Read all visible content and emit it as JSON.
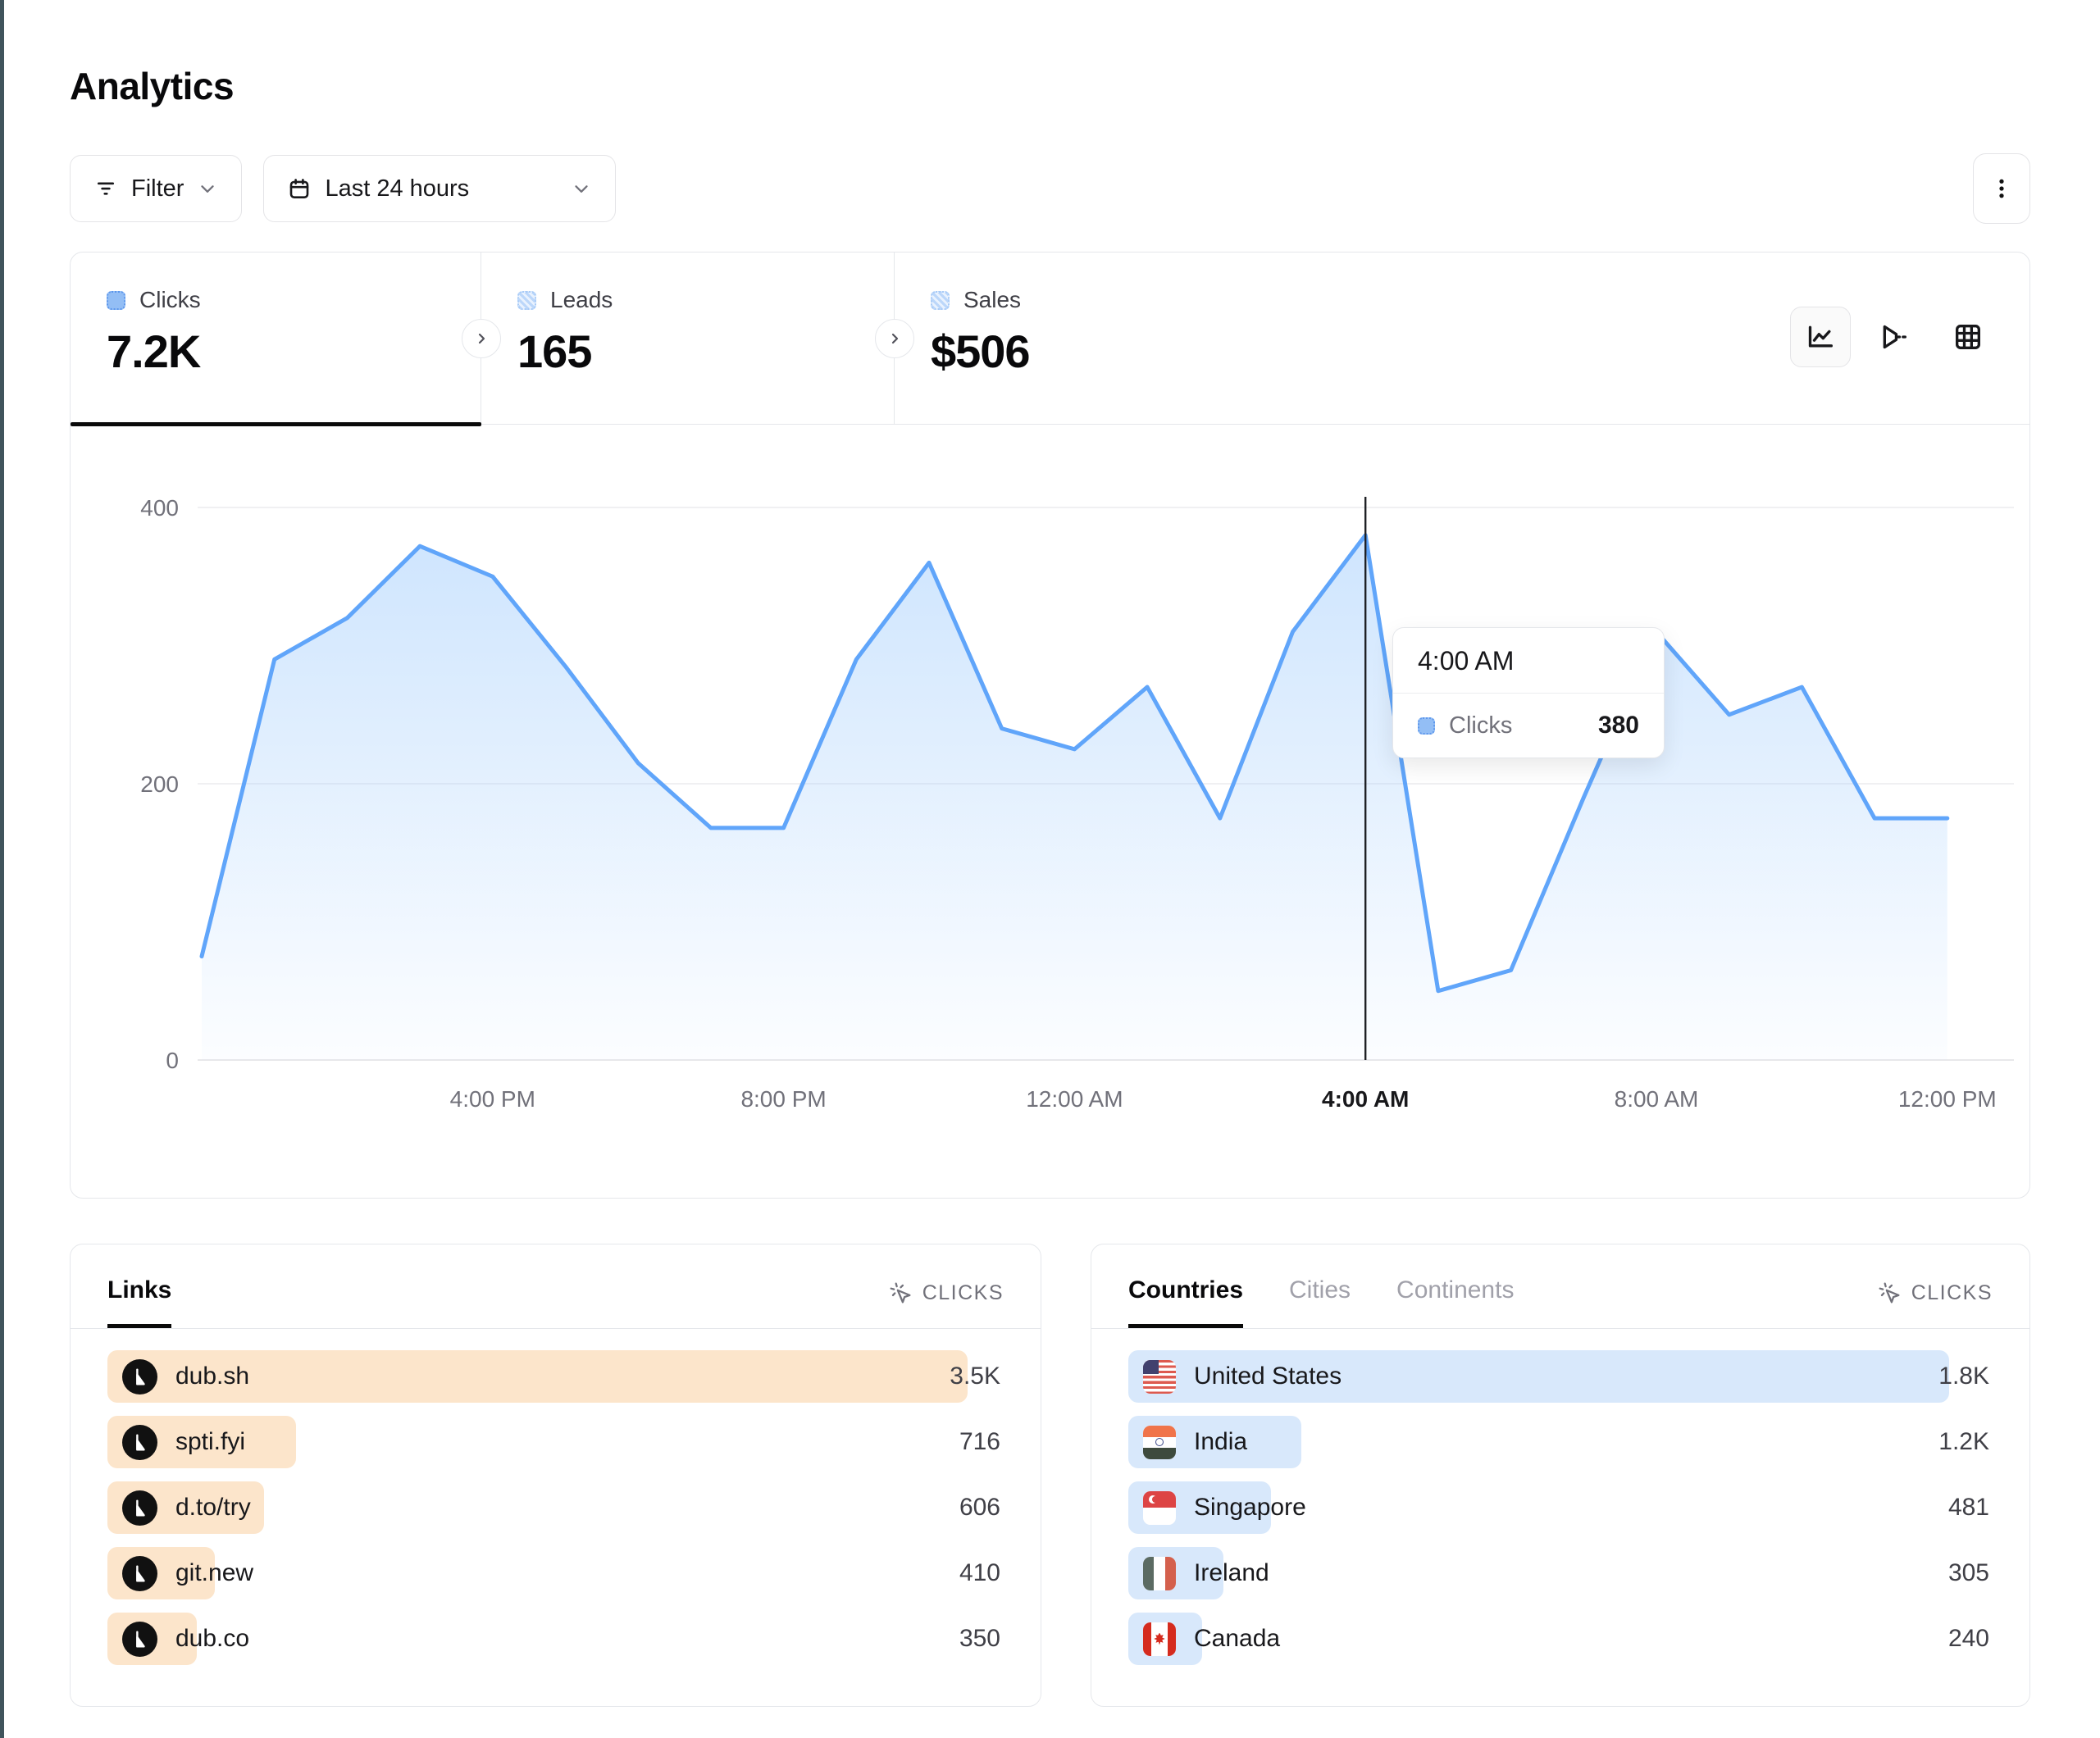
{
  "page": {
    "title": "Analytics"
  },
  "toolbar": {
    "filter_label": "Filter",
    "date_range_label": "Last 24 hours",
    "kebab_menu": "more-options"
  },
  "stats": {
    "tabs": [
      {
        "label": "Clicks",
        "value": "7.2K",
        "active": true
      },
      {
        "label": "Leads",
        "value": "165",
        "active": false
      },
      {
        "label": "Sales",
        "value": "$506",
        "active": false
      }
    ],
    "view_toggles": [
      "line-chart-view",
      "funnel-view",
      "table-view"
    ]
  },
  "chart_data": {
    "type": "area",
    "title": "Clicks over the last 24 hours",
    "series_name": "Clicks",
    "x": [
      "12:00 PM",
      "1:00 PM",
      "2:00 PM",
      "3:00 PM",
      "4:00 PM",
      "5:00 PM",
      "6:00 PM",
      "7:00 PM",
      "8:00 PM",
      "9:00 PM",
      "10:00 PM",
      "11:00 PM",
      "12:00 AM",
      "1:00 AM",
      "2:00 AM",
      "3:00 AM",
      "4:00 AM",
      "5:00 AM",
      "6:00 AM",
      "7:00 AM",
      "8:00 AM",
      "9:00 AM",
      "10:00 AM",
      "11:00 AM",
      "12:00 PM"
    ],
    "values": [
      75,
      290,
      320,
      372,
      350,
      285,
      215,
      168,
      168,
      290,
      360,
      240,
      225,
      270,
      175,
      310,
      380,
      50,
      65,
      190,
      310,
      250,
      270,
      175,
      175
    ],
    "ylim": [
      0,
      400
    ],
    "yticks": [
      0,
      200,
      400
    ],
    "xticks": [
      {
        "label": "4:00 PM",
        "index": 4
      },
      {
        "label": "8:00 PM",
        "index": 8
      },
      {
        "label": "12:00 AM",
        "index": 12
      },
      {
        "label": "4:00 AM",
        "index": 16
      },
      {
        "label": "8:00 AM",
        "index": 20
      },
      {
        "label": "12:00 PM",
        "index": 24
      }
    ],
    "grid": "horizontal",
    "legend_position": "none",
    "line_color": "#60a5fa",
    "crosshair": {
      "index": 16,
      "title": "4:00 AM",
      "series": "Clicks",
      "value": "380"
    }
  },
  "links_panel": {
    "tabs": [
      {
        "label": "Links",
        "active": true
      }
    ],
    "metric_label": "CLICKS",
    "bar_color": "#fce5cb",
    "rows": [
      {
        "label": "dub.sh",
        "value": "3.5K",
        "bar_pct": 96
      },
      {
        "label": "spti.fyi",
        "value": "716",
        "bar_pct": 21
      },
      {
        "label": "d.to/try",
        "value": "606",
        "bar_pct": 17.5
      },
      {
        "label": "git.new",
        "value": "410",
        "bar_pct": 12
      },
      {
        "label": "dub.co",
        "value": "350",
        "bar_pct": 10
      }
    ]
  },
  "countries_panel": {
    "tabs": [
      {
        "label": "Countries",
        "active": true
      },
      {
        "label": "Cities",
        "active": false
      },
      {
        "label": "Continents",
        "active": false
      }
    ],
    "metric_label": "CLICKS",
    "bar_color": "#d8e8fb",
    "rows": [
      {
        "label": "United States",
        "code": "us",
        "value": "1.8K",
        "bar_pct": 95
      },
      {
        "label": "India",
        "code": "in",
        "value": "1.2K",
        "bar_pct": 20
      },
      {
        "label": "Singapore",
        "code": "sg",
        "value": "481",
        "bar_pct": 16.5
      },
      {
        "label": "Ireland",
        "code": "ie",
        "value": "305",
        "bar_pct": 11
      },
      {
        "label": "Canada",
        "code": "ca",
        "value": "240",
        "bar_pct": 8.5
      }
    ]
  },
  "colors": {
    "accent_blue": "#60a5fa",
    "legend_blue_fill": "#93bef5",
    "links_bar": "#fce5cb",
    "countries_bar": "#d8e8fb",
    "active_tab_underline": "#0a0a0a",
    "left_edge_strip": "#40545c",
    "muted_text": "#71717a",
    "card_border": "#e5e7eb"
  }
}
